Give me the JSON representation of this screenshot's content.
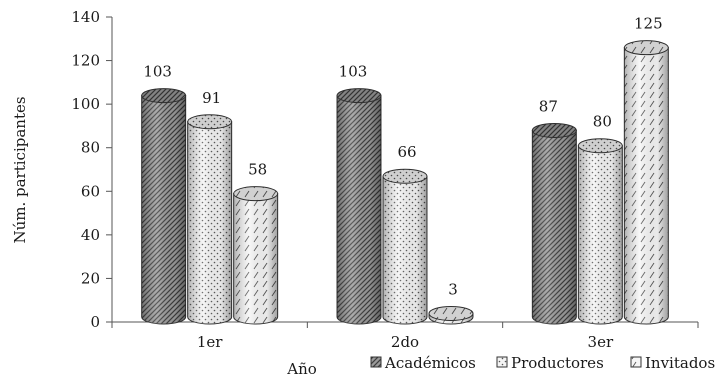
{
  "chart_data": {
    "type": "bar",
    "title": "",
    "xlabel": "Año",
    "ylabel": "Núm. participantes",
    "categories": [
      "1er",
      "2do",
      "3er"
    ],
    "ylim": [
      0,
      140
    ],
    "yticks": [
      0,
      20,
      40,
      60,
      80,
      100,
      120,
      140
    ],
    "series": [
      {
        "name": "Académicos",
        "values": [
          103,
          103,
          87
        ]
      },
      {
        "name": "Productores",
        "values": [
          91,
          66,
          80
        ]
      },
      {
        "name": "Invitados",
        "values": [
          58,
          3,
          125
        ]
      }
    ],
    "legend_position": "bottom-right",
    "style": "3d-cylinder"
  }
}
